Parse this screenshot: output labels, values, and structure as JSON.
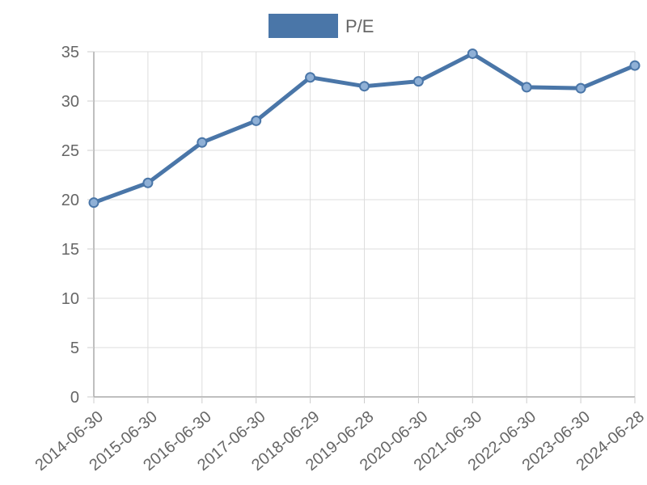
{
  "chart_data": {
    "type": "line",
    "title": "",
    "xlabel": "",
    "ylabel": "",
    "categories": [
      "2014-06-30",
      "2015-06-30",
      "2016-06-30",
      "2017-06-30",
      "2018-06-29",
      "2019-06-28",
      "2020-06-30",
      "2021-06-30",
      "2022-06-30",
      "2023-06-30",
      "2024-06-28"
    ],
    "series": [
      {
        "name": "P/E",
        "color": "#4a76a8",
        "values": [
          19.7,
          21.7,
          25.8,
          28.0,
          32.4,
          31.5,
          32.0,
          34.8,
          31.4,
          31.3,
          33.6
        ]
      }
    ],
    "ylim": [
      0,
      35
    ],
    "yticks": [
      0,
      5,
      10,
      15,
      20,
      25,
      30,
      35
    ],
    "grid": true,
    "legend_position": "top-center"
  }
}
